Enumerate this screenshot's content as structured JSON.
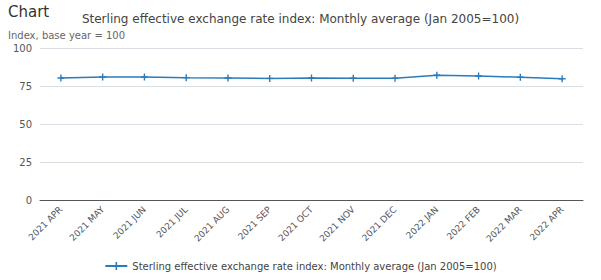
{
  "chart_data": {
    "type": "line",
    "title": "Sterling effective exchange rate index: Monthly average (Jan 2005=100)",
    "ylabel": "Index, base year = 100",
    "annotations": [
      "Chart"
    ],
    "categories": [
      "2021 APR",
      "2021 MAY",
      "2021 JUN",
      "2021 JUL",
      "2021 AUG",
      "2021 SEP",
      "2021 OCT",
      "2021 NOV",
      "2021 DEC",
      "2022 JAN",
      "2022 FEB",
      "2022 MAR",
      "2022 APR"
    ],
    "series": [
      {
        "name": "Sterling effective exchange rate index: Monthly average (Jan 2005=100)",
        "color": "#2b7bba",
        "marker": "plus",
        "values": [
          80.3,
          80.9,
          80.9,
          80.5,
          80.3,
          80.0,
          80.3,
          80.1,
          80.1,
          82.1,
          81.6,
          80.8,
          79.8
        ]
      }
    ],
    "ylim": [
      0,
      100
    ],
    "yticks": [
      0,
      25,
      50,
      75,
      100
    ],
    "grid": true,
    "legend": "bottom"
  }
}
